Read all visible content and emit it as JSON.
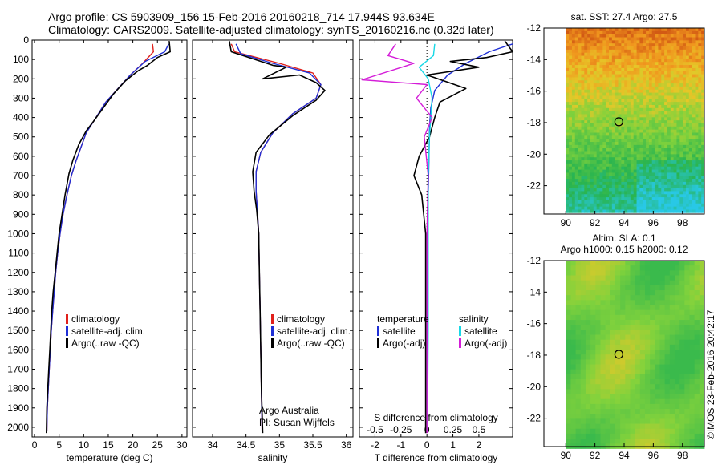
{
  "header": {
    "line1": "Argo profile: CS 5903909_156 15-Feb-2016 20160218_714 17.944S 93.634E",
    "line2": "Climatology: CARS2009. Satellite-adjusted climatology: synTS_20160216.nc (0.32d later)"
  },
  "colors": {
    "climatology": "#e0201b",
    "satellite": "#1f2fd6",
    "argo": "#000000",
    "satellite_s": "#18d8e6",
    "argo_s": "#d41cd8"
  },
  "chart_data": [
    {
      "type": "line",
      "id": "temperature",
      "xlabel": "temperature (deg C)",
      "ylabel": "",
      "xlim": [
        -0.5,
        31
      ],
      "ylim": [
        2050,
        0
      ],
      "xticks": [
        0,
        5,
        10,
        15,
        20,
        25,
        30
      ],
      "yticks": [
        0,
        100,
        200,
        300,
        400,
        500,
        600,
        700,
        800,
        900,
        1000,
        1100,
        1200,
        1300,
        1400,
        1500,
        1600,
        1700,
        1800,
        1900,
        2000
      ],
      "legend": [
        "climatology",
        "satellite-adj. clim.",
        "Argo(..raw -QC)"
      ],
      "series": [
        {
          "name": "climatology",
          "color": "climatology",
          "points": [
            [
              24.0,
              20
            ],
            [
              24.2,
              60
            ],
            [
              22.0,
              120
            ],
            [
              19.5,
              180
            ],
            [
              17.0,
              250
            ],
            [
              14.5,
              320
            ],
            [
              12.5,
              400
            ],
            [
              10.5,
              480
            ],
            [
              9.5,
              550
            ],
            [
              8.5,
              620
            ],
            [
              7.5,
              700
            ],
            [
              6.6,
              800
            ],
            [
              5.8,
              900
            ],
            [
              5.2,
              1000
            ],
            [
              4.7,
              1100
            ],
            [
              4.3,
              1200
            ],
            [
              4.0,
              1300
            ],
            [
              3.7,
              1400
            ],
            [
              3.4,
              1500
            ],
            [
              3.2,
              1600
            ],
            [
              3.0,
              1700
            ],
            [
              2.8,
              1800
            ],
            [
              2.6,
              1900
            ],
            [
              2.5,
              2020
            ]
          ]
        },
        {
          "name": "satellite-adj. clim.",
          "color": "satellite",
          "points": [
            [
              27.3,
              20
            ],
            [
              26.5,
              60
            ],
            [
              22.5,
              110
            ],
            [
              19.5,
              180
            ],
            [
              17.0,
              250
            ],
            [
              14.5,
              320
            ],
            [
              12.5,
              400
            ],
            [
              10.5,
              480
            ],
            [
              9.5,
              550
            ],
            [
              8.5,
              620
            ],
            [
              7.5,
              700
            ],
            [
              6.6,
              800
            ],
            [
              5.8,
              900
            ],
            [
              5.2,
              1000
            ],
            [
              4.7,
              1100
            ],
            [
              4.3,
              1200
            ],
            [
              4.0,
              1300
            ],
            [
              3.7,
              1400
            ],
            [
              3.4,
              1500
            ],
            [
              3.2,
              1600
            ],
            [
              3.0,
              1700
            ],
            [
              2.8,
              1800
            ],
            [
              2.6,
              1900
            ],
            [
              2.5,
              2020
            ]
          ]
        },
        {
          "name": "Argo(..raw -QC)",
          "color": "argo",
          "points": [
            [
              27.4,
              5
            ],
            [
              27.6,
              60
            ],
            [
              25.0,
              90
            ],
            [
              23.0,
              130
            ],
            [
              21.0,
              160
            ],
            [
              18.5,
              210
            ],
            [
              16.0,
              280
            ],
            [
              14.0,
              350
            ],
            [
              12.0,
              420
            ],
            [
              10.5,
              470
            ],
            [
              9.0,
              540
            ],
            [
              7.8,
              620
            ],
            [
              7.0,
              690
            ],
            [
              6.2,
              800
            ],
            [
              5.6,
              900
            ],
            [
              5.0,
              1000
            ],
            [
              4.6,
              1100
            ],
            [
              4.2,
              1200
            ],
            [
              3.8,
              1300
            ],
            [
              3.5,
              1400
            ],
            [
              3.3,
              1500
            ],
            [
              3.1,
              1600
            ],
            [
              2.9,
              1700
            ],
            [
              2.7,
              1800
            ],
            [
              2.5,
              1900
            ],
            [
              2.4,
              2030
            ]
          ]
        }
      ]
    },
    {
      "type": "line",
      "id": "salinity",
      "xlabel": "salinity",
      "ylabel": "",
      "xlim": [
        33.7,
        36.1
      ],
      "ylim": [
        2050,
        0
      ],
      "xticks": [
        34,
        34.5,
        35,
        35.5,
        36
      ],
      "yticks": [
        0,
        100,
        200,
        300,
        400,
        500,
        600,
        700,
        800,
        900,
        1000,
        1100,
        1200,
        1300,
        1400,
        1500,
        1600,
        1700,
        1800,
        1900,
        2000
      ],
      "legend": [
        "climatology",
        "satellite-adj. clim.",
        "Argo(..raw -QC)"
      ],
      "annotations": [
        "Argo Australia",
        "PI: Susan Wijffels"
      ],
      "series": [
        {
          "name": "climatology",
          "color": "climatology",
          "points": [
            [
              34.28,
              20
            ],
            [
              34.33,
              60
            ],
            [
              35.0,
              120
            ],
            [
              35.5,
              170
            ],
            [
              35.62,
              230
            ],
            [
              35.55,
              300
            ],
            [
              35.2,
              380
            ],
            [
              34.9,
              480
            ],
            [
              34.72,
              580
            ],
            [
              34.65,
              680
            ],
            [
              34.65,
              780
            ],
            [
              34.67,
              880
            ],
            [
              34.69,
              1000
            ],
            [
              34.7,
              1200
            ],
            [
              34.71,
              1400
            ],
            [
              34.72,
              1600
            ],
            [
              34.73,
              1800
            ],
            [
              34.74,
              2020
            ]
          ]
        },
        {
          "name": "satellite-adj. clim.",
          "color": "satellite",
          "points": [
            [
              34.35,
              20
            ],
            [
              34.42,
              70
            ],
            [
              34.9,
              120
            ],
            [
              35.45,
              170
            ],
            [
              35.62,
              230
            ],
            [
              35.55,
              300
            ],
            [
              35.2,
              380
            ],
            [
              34.9,
              480
            ],
            [
              34.72,
              580
            ],
            [
              34.65,
              680
            ],
            [
              34.65,
              780
            ],
            [
              34.67,
              880
            ],
            [
              34.69,
              1000
            ],
            [
              34.7,
              1200
            ],
            [
              34.71,
              1400
            ],
            [
              34.72,
              1600
            ],
            [
              34.73,
              1800
            ],
            [
              34.74,
              2020
            ]
          ]
        },
        {
          "name": "Argo(..raw -QC)",
          "color": "argo",
          "points": [
            [
              34.25,
              5
            ],
            [
              34.28,
              60
            ],
            [
              34.9,
              130
            ],
            [
              35.1,
              140
            ],
            [
              34.75,
              200
            ],
            [
              35.3,
              180
            ],
            [
              35.55,
              220
            ],
            [
              35.68,
              260
            ],
            [
              35.55,
              310
            ],
            [
              35.2,
              390
            ],
            [
              34.85,
              490
            ],
            [
              34.65,
              580
            ],
            [
              34.6,
              680
            ],
            [
              34.62,
              780
            ],
            [
              34.66,
              880
            ],
            [
              34.69,
              1000
            ],
            [
              34.7,
              1200
            ],
            [
              34.71,
              1400
            ],
            [
              34.72,
              1600
            ],
            [
              34.73,
              1800
            ],
            [
              34.75,
              2030
            ]
          ]
        }
      ]
    },
    {
      "type": "line",
      "id": "difference",
      "xlabel": "T difference from climatology",
      "xlabel_top": "S difference from climatology",
      "xlim": [
        -2.6,
        3.3
      ],
      "ylim": [
        2050,
        0
      ],
      "xticks": [
        -2,
        -1,
        0,
        1,
        2
      ],
      "top_ticks": [
        "-0.5",
        "-0.25",
        "0",
        "0.25",
        "0.5"
      ],
      "top_ticks_at": [
        -2,
        -1,
        0,
        1,
        2
      ],
      "yticks": [
        0,
        100,
        200,
        300,
        400,
        500,
        600,
        700,
        800,
        900,
        1000,
        1100,
        1200,
        1300,
        1400,
        1500,
        1600,
        1700,
        1800,
        1900,
        2000
      ],
      "legend_t": [
        "temperature",
        "satellite",
        "Argo(-adj)"
      ],
      "legend_s": [
        "salinity",
        "satellite",
        "Argo(-adj)"
      ],
      "series": [
        {
          "name": "satellite",
          "color": "satellite",
          "points": [
            [
              3.3,
              20
            ],
            [
              2.4,
              60
            ],
            [
              1.5,
              120
            ],
            [
              0.8,
              180
            ],
            [
              0.3,
              260
            ],
            [
              0.15,
              350
            ],
            [
              0.1,
              450
            ],
            [
              0.08,
              600
            ],
            [
              0.05,
              800
            ],
            [
              0.03,
              1000
            ],
            [
              0.02,
              1500
            ],
            [
              0.0,
              2020
            ]
          ]
        },
        {
          "name": "Argo(-adj)",
          "color": "argo",
          "points": [
            [
              3.0,
              5
            ],
            [
              3.3,
              60
            ],
            [
              2.3,
              90
            ],
            [
              0.9,
              110
            ],
            [
              2.0,
              140
            ],
            [
              0.0,
              180
            ],
            [
              1.5,
              250
            ],
            [
              0.5,
              320
            ],
            [
              0.3,
              400
            ],
            [
              0.1,
              500
            ],
            [
              -0.3,
              600
            ],
            [
              -0.5,
              700
            ],
            [
              -0.2,
              800
            ],
            [
              -0.05,
              1000
            ],
            [
              -0.05,
              1500
            ],
            [
              -0.05,
              2030
            ]
          ]
        },
        {
          "name": "satellite",
          "color": "satellite_s",
          "points": [
            [
              0.3,
              20
            ],
            [
              0.25,
              80
            ],
            [
              -0.3,
              140
            ],
            [
              0.05,
              200
            ],
            [
              0.2,
              300
            ],
            [
              0.15,
              400
            ],
            [
              0.1,
              500
            ],
            [
              0.05,
              700
            ],
            [
              0.05,
              1000
            ],
            [
              0.05,
              1500
            ],
            [
              0.02,
              2020
            ]
          ]
        },
        {
          "name": "Argo(-adj)",
          "color": "argo_s",
          "points": [
            [
              -1.2,
              20
            ],
            [
              -1.5,
              80
            ],
            [
              -0.5,
              120
            ],
            [
              -2.5,
              205
            ],
            [
              0.0,
              230
            ],
            [
              -0.4,
              300
            ],
            [
              0.2,
              400
            ],
            [
              -0.1,
              500
            ],
            [
              0.05,
              700
            ],
            [
              0.0,
              1000
            ],
            [
              0.0,
              1500
            ],
            [
              0.0,
              2030
            ]
          ]
        }
      ]
    },
    {
      "type": "heatmap",
      "id": "sst_map",
      "title": "sat. SST: 27.4 Argo: 27.5",
      "xlim": [
        88.5,
        99.5
      ],
      "ylim": [
        -23.8,
        -12
      ],
      "xticks": [
        90,
        92,
        94,
        96,
        98
      ],
      "yticks": [
        -12,
        -14,
        -16,
        -18,
        -20,
        -22
      ],
      "marker": [
        93.634,
        -17.944
      ]
    },
    {
      "type": "heatmap",
      "id": "sla_map",
      "title": "Altim. SLA: 0.1",
      "subtitle": "Argo h1000: 0.15 h2000: 0.12",
      "xlim": [
        88.5,
        99.5
      ],
      "ylim": [
        -23.8,
        -12
      ],
      "xticks": [
        90,
        92,
        94,
        96,
        98
      ],
      "yticks": [
        -12,
        -14,
        -16,
        -18,
        -20,
        -22
      ],
      "marker": [
        93.634,
        -17.944
      ]
    }
  ],
  "credit": "©IMOS 23-Feb-2016 20:42:17"
}
